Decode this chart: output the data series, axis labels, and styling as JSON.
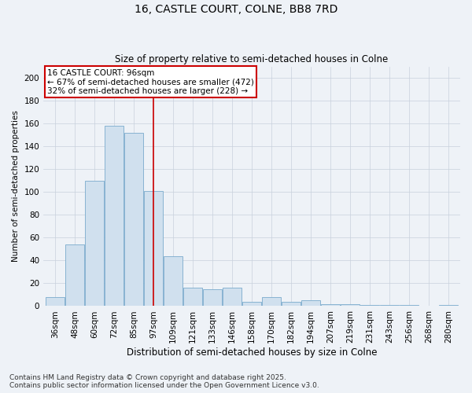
{
  "title": "16, CASTLE COURT, COLNE, BB8 7RD",
  "subtitle": "Size of property relative to semi-detached houses in Colne",
  "xlabel": "Distribution of semi-detached houses by size in Colne",
  "ylabel": "Number of semi-detached properties",
  "bins": [
    "36sqm",
    "48sqm",
    "60sqm",
    "72sqm",
    "85sqm",
    "97sqm",
    "109sqm",
    "121sqm",
    "133sqm",
    "146sqm",
    "158sqm",
    "170sqm",
    "182sqm",
    "194sqm",
    "207sqm",
    "219sqm",
    "231sqm",
    "243sqm",
    "256sqm",
    "268sqm",
    "280sqm"
  ],
  "values": [
    8,
    54,
    110,
    158,
    152,
    101,
    44,
    16,
    15,
    16,
    4,
    8,
    4,
    5,
    2,
    2,
    1,
    1,
    1,
    0,
    1
  ],
  "bar_color": "#d0e0ee",
  "bar_edge_color": "#7aabcc",
  "vline_x": 5,
  "annotation_text": "16 CASTLE COURT: 96sqm\n← 67% of semi-detached houses are smaller (472)\n32% of semi-detached houses are larger (228) →",
  "annotation_box_color": "#ffffff",
  "annotation_box_edge": "#cc0000",
  "vline_color": "#cc0000",
  "ylim": [
    0,
    210
  ],
  "yticks": [
    0,
    20,
    40,
    60,
    80,
    100,
    120,
    140,
    160,
    180,
    200
  ],
  "footer1": "Contains HM Land Registry data © Crown copyright and database right 2025.",
  "footer2": "Contains public sector information licensed under the Open Government Licence v3.0.",
  "background_color": "#eef2f7",
  "grid_color": "#c8d0dc",
  "title_fontsize": 10,
  "subtitle_fontsize": 8.5,
  "tick_fontsize": 7.5,
  "ylabel_fontsize": 7.5,
  "xlabel_fontsize": 8.5,
  "annotation_fontsize": 7.5,
  "footer_fontsize": 6.5
}
